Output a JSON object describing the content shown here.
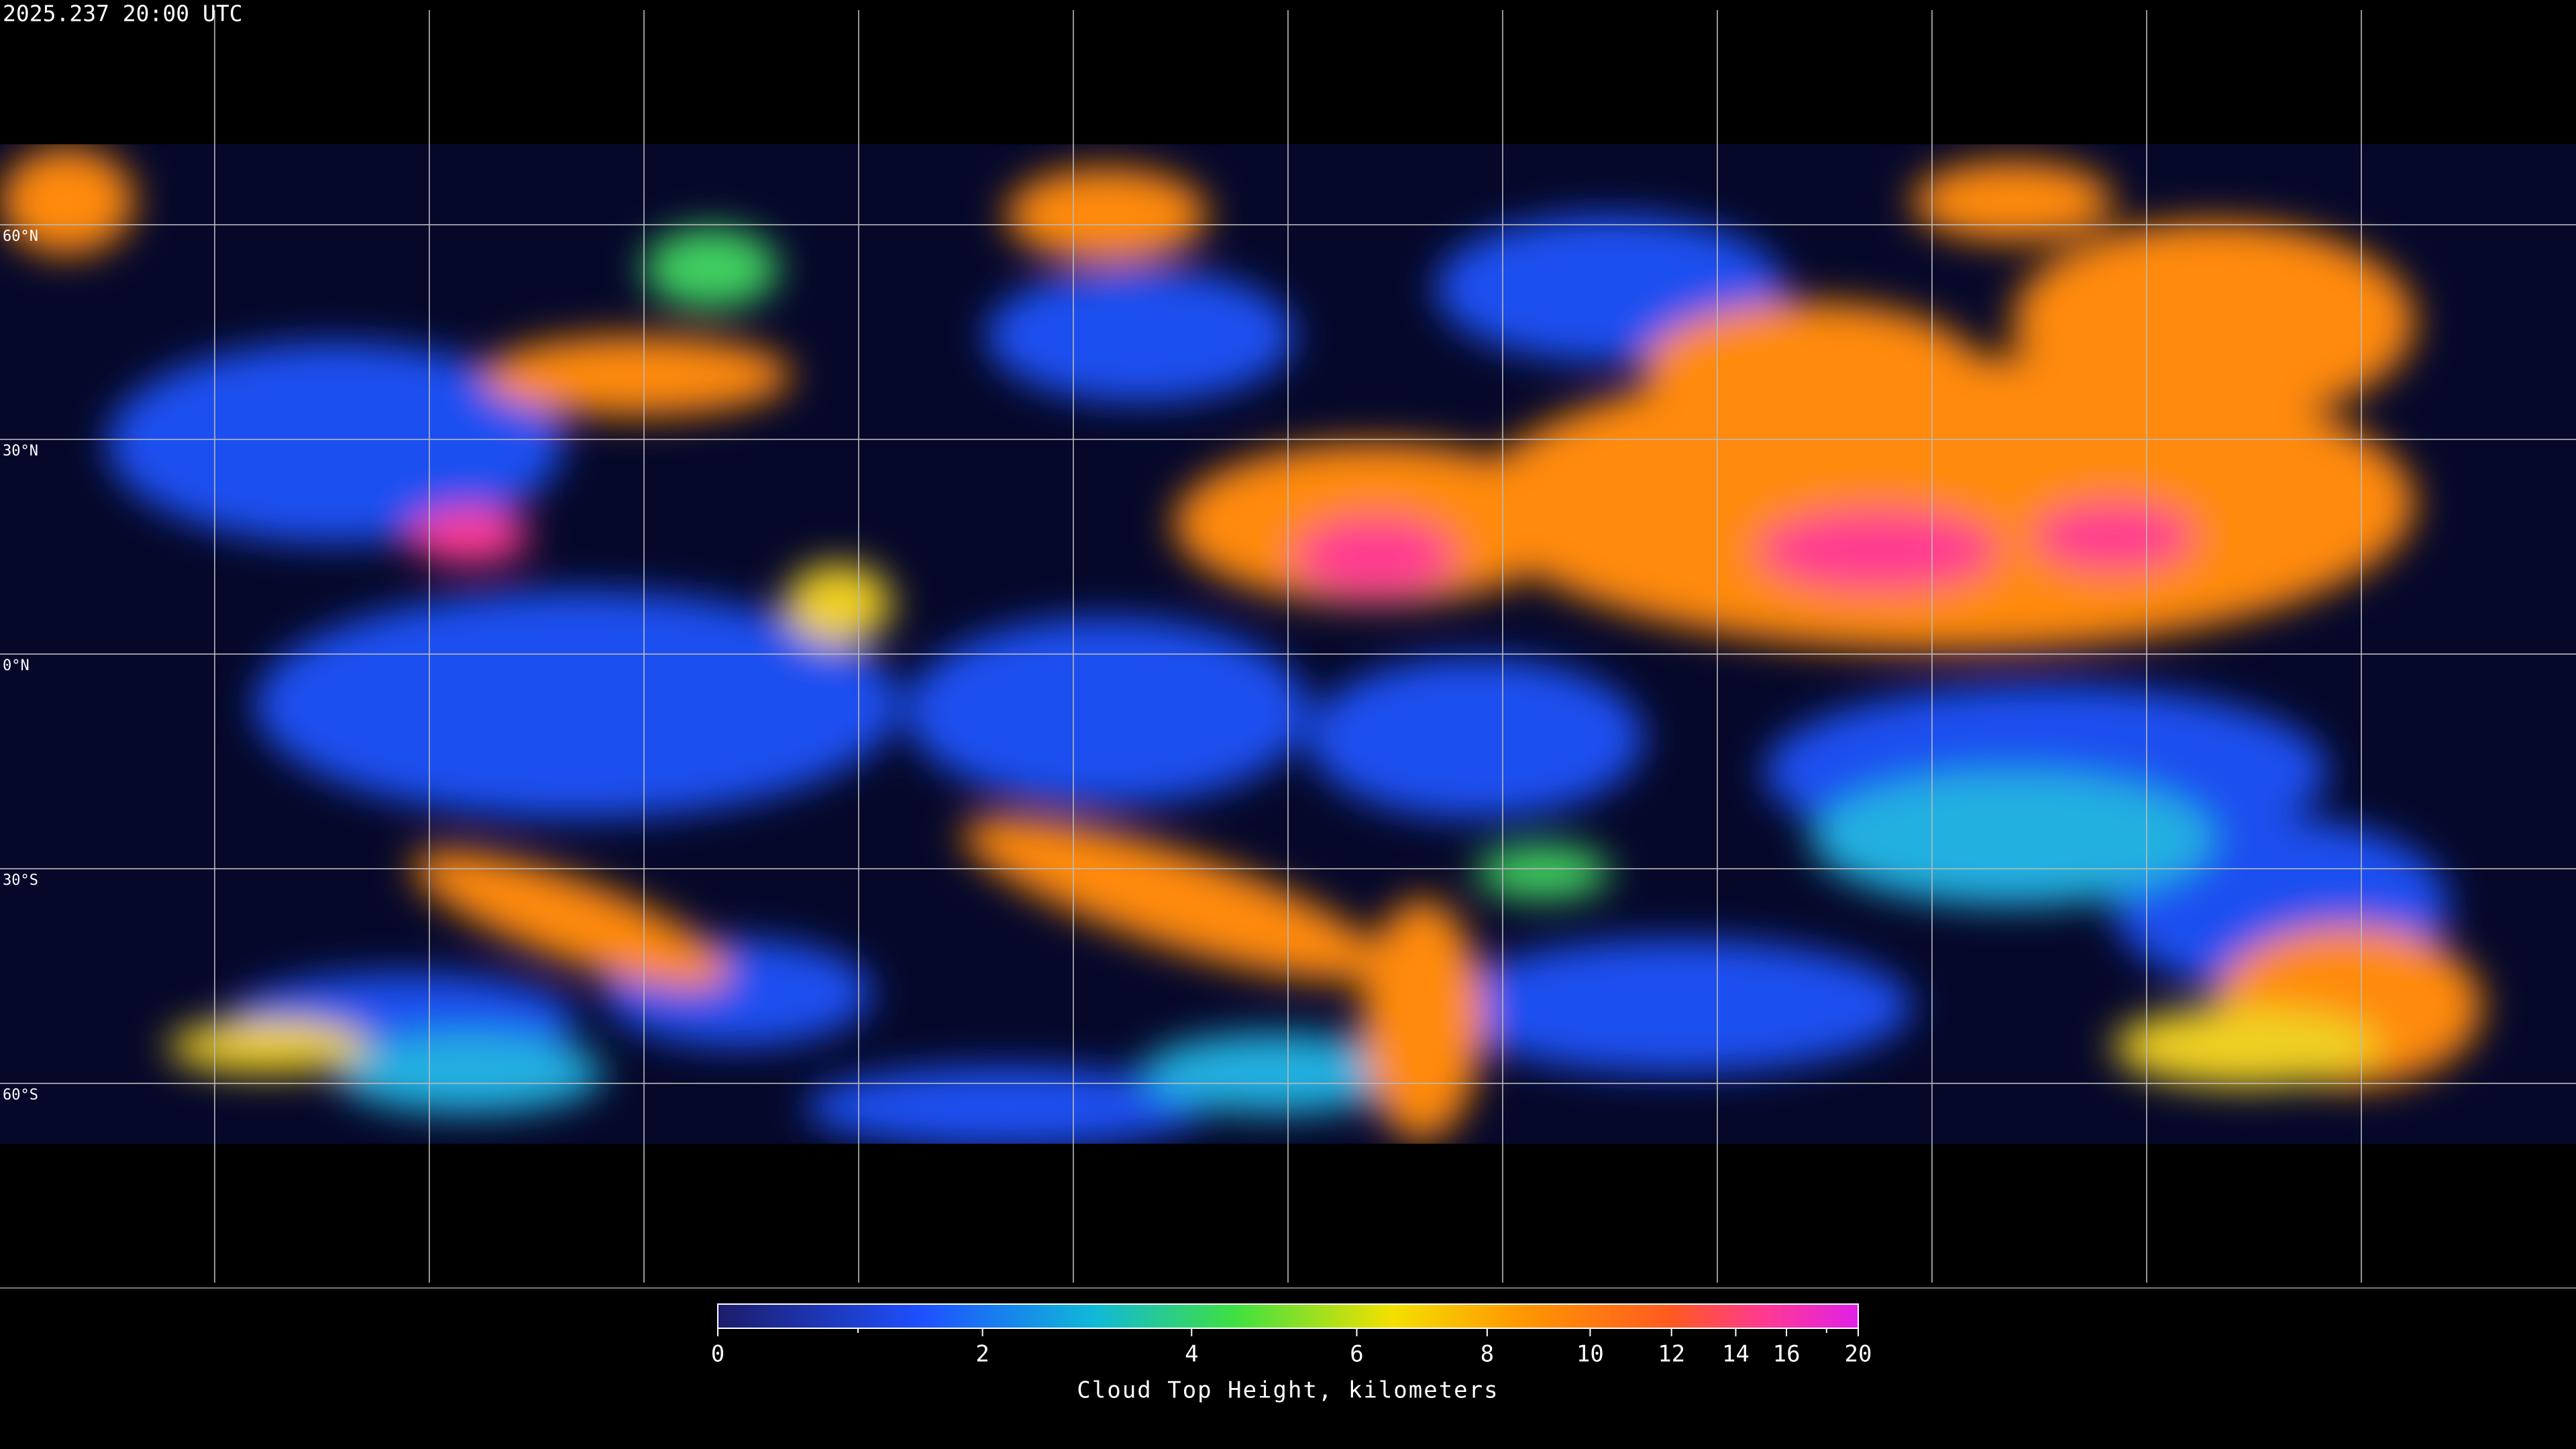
{
  "header": {
    "timestamp": "2025.237 20:00 UTC"
  },
  "map": {
    "lat_lines": [
      {
        "value": 60,
        "label": "60°N"
      },
      {
        "value": 30,
        "label": "30°N"
      },
      {
        "value": 0,
        "label": "0°N"
      },
      {
        "value": -30,
        "label": "30°S"
      },
      {
        "value": -60,
        "label": "60°S"
      }
    ],
    "lon_lines": [
      -150,
      -120,
      -90,
      -60,
      -30,
      0,
      30,
      60,
      90,
      120,
      150
    ],
    "lonlim": [
      -180,
      180
    ],
    "latlim": [
      -90,
      90
    ]
  },
  "colorbar": {
    "title": "Cloud Top Height, kilometers",
    "range": [
      0,
      20
    ],
    "scale": {
      "type": "saturating-exponential",
      "rate": 0.118
    },
    "ticks": [
      0,
      2,
      4,
      6,
      8,
      10,
      12,
      14,
      16,
      20
    ],
    "minor_ticks": [
      1,
      18
    ],
    "colormap": [
      {
        "value": 0,
        "color": "#1c1c6a"
      },
      {
        "value": 1.5,
        "color": "#1e50ff"
      },
      {
        "value": 3,
        "color": "#10b8d8"
      },
      {
        "value": 4.5,
        "color": "#40e040"
      },
      {
        "value": 6.5,
        "color": "#f4e000"
      },
      {
        "value": 8.5,
        "color": "#ff9a00"
      },
      {
        "value": 12,
        "color": "#ff5a20"
      },
      {
        "value": 15,
        "color": "#ff3a90"
      },
      {
        "value": 20,
        "color": "#e020e8"
      }
    ]
  }
}
